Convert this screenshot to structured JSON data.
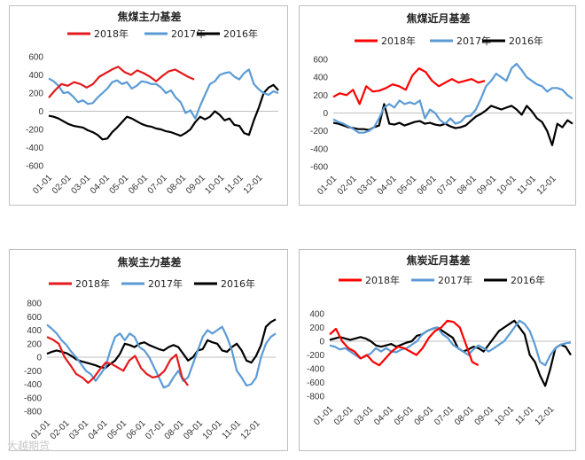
{
  "watermark": "大越期货",
  "chart_data": [
    {
      "type": "line",
      "title": "焦煤主力基差",
      "x_ticks": [
        "01-01",
        "02-01",
        "03-01",
        "04-01",
        "05-01",
        "06-01",
        "07-01",
        "08-01",
        "09-01",
        "10-01",
        "11-01",
        "12-01"
      ],
      "yticks": [
        600,
        400,
        200,
        0,
        -200,
        -400,
        -600
      ],
      "ylim": [
        -600,
        600
      ],
      "legend_position": "top",
      "grid": false,
      "series": [
        {
          "name": "2018年",
          "color": "#e31a1c",
          "x_end": 7.6,
          "values": [
            150,
            230,
            300,
            280,
            320,
            300,
            260,
            300,
            380,
            420,
            460,
            490,
            430,
            400,
            450,
            420,
            380,
            330,
            390,
            440,
            460,
            420,
            380,
            350
          ]
        },
        {
          "name": "2017年",
          "color": "#5b9bd5",
          "x_end": 12.0,
          "values": [
            360,
            330,
            280,
            200,
            210,
            160,
            100,
            120,
            80,
            90,
            150,
            200,
            250,
            320,
            340,
            300,
            320,
            250,
            280,
            330,
            320,
            300,
            300,
            260,
            200,
            230,
            150,
            100,
            -20,
            10,
            -80,
            60,
            180,
            300,
            330,
            400,
            420,
            430,
            380,
            350,
            420,
            460,
            300,
            240,
            200,
            180,
            220,
            200
          ]
        },
        {
          "name": "2016年",
          "color": "#000000",
          "x_end": 12.0,
          "values": [
            -50,
            -60,
            -80,
            -110,
            -140,
            -160,
            -170,
            -180,
            -210,
            -230,
            -260,
            -310,
            -300,
            -230,
            -180,
            -120,
            -60,
            -80,
            -110,
            -140,
            -160,
            -170,
            -190,
            -200,
            -220,
            -230,
            -250,
            -270,
            -240,
            -200,
            -120,
            -60,
            -90,
            -60,
            0,
            -40,
            -100,
            -80,
            -150,
            -160,
            -240,
            -260,
            -100,
            40,
            200,
            260,
            290,
            230
          ]
        }
      ]
    },
    {
      "type": "line",
      "title": "焦煤近月基差",
      "x_ticks": [
        "01-01",
        "02-01",
        "03-01",
        "04-01",
        "05-01",
        "06-01",
        "07-01",
        "08-01",
        "09-01",
        "10-01",
        "11-01",
        "12-01"
      ],
      "yticks": [
        600,
        400,
        200,
        0,
        -200,
        -400,
        -600
      ],
      "ylim": [
        -600,
        600
      ],
      "legend_position": "top",
      "grid": false,
      "series": [
        {
          "name": "2018年",
          "color": "#ff0000",
          "x_end": 7.6,
          "values": [
            180,
            220,
            200,
            260,
            100,
            300,
            240,
            250,
            280,
            320,
            300,
            260,
            420,
            500,
            460,
            360,
            300,
            340,
            380,
            340,
            360,
            380,
            340,
            360
          ]
        },
        {
          "name": "2017年",
          "color": "#5b9bd5",
          "x_end": 12.0,
          "values": [
            -70,
            -100,
            -120,
            -150,
            -180,
            -220,
            -220,
            -200,
            -160,
            -60,
            60,
            100,
            60,
            140,
            100,
            120,
            100,
            140,
            -60,
            40,
            0,
            -80,
            -120,
            -60,
            -120,
            -100,
            -40,
            -30,
            40,
            160,
            300,
            360,
            440,
            400,
            360,
            500,
            550,
            480,
            400,
            360,
            320,
            300,
            240,
            280,
            280,
            260,
            200,
            160
          ]
        },
        {
          "name": "2016年",
          "color": "#000000",
          "x_end": 12.0,
          "values": [
            -110,
            -120,
            -140,
            -160,
            -170,
            -180,
            -180,
            -190,
            -160,
            -140,
            100,
            -120,
            -130,
            -110,
            -140,
            -120,
            -100,
            -90,
            -120,
            -110,
            -130,
            -140,
            -120,
            -150,
            -170,
            -160,
            -140,
            -90,
            -40,
            -10,
            30,
            80,
            60,
            40,
            60,
            80,
            40,
            -20,
            80,
            20,
            -60,
            -100,
            -200,
            -360,
            -120,
            -160,
            -80,
            -120
          ]
        }
      ]
    },
    {
      "type": "line",
      "title": "焦炭主力基差",
      "x_ticks": [
        "01-01",
        "02-01",
        "03-01",
        "04-01",
        "05-01",
        "06-01",
        "07-01",
        "08-01",
        "09-01",
        "10-01",
        "11-01",
        "12-01"
      ],
      "yticks": [
        800,
        600,
        400,
        200,
        0,
        -200,
        -400,
        -600,
        -800
      ],
      "ylim": [
        -800,
        800
      ],
      "legend_position": "top",
      "grid": false,
      "series": [
        {
          "name": "2018年",
          "color": "#e31a1c",
          "x_end": 7.4,
          "values": [
            300,
            260,
            200,
            0,
            -120,
            -250,
            -300,
            -380,
            -300,
            -180,
            -80,
            -100,
            -150,
            -200,
            -50,
            20,
            -160,
            -250,
            -300,
            -280,
            -200,
            -40,
            40,
            -300,
            -420
          ]
        },
        {
          "name": "2017年",
          "color": "#5b9bd5",
          "x_end": 12.0,
          "values": [
            480,
            420,
            350,
            250,
            180,
            80,
            0,
            -100,
            -200,
            -250,
            -350,
            -250,
            -150,
            100,
            300,
            350,
            250,
            350,
            300,
            150,
            100,
            0,
            -150,
            -300,
            -450,
            -420,
            -300,
            -200,
            -350,
            -300,
            -100,
            100,
            300,
            400,
            350,
            400,
            450,
            300,
            100,
            -200,
            -300,
            -420,
            -400,
            -300,
            0,
            200,
            300,
            350
          ]
        },
        {
          "name": "2016年",
          "color": "#000000",
          "x_end": 12.0,
          "values": [
            50,
            80,
            100,
            80,
            60,
            20,
            -30,
            -60,
            -80,
            -100,
            -120,
            -150,
            -160,
            -100,
            -50,
            50,
            200,
            180,
            150,
            200,
            220,
            180,
            150,
            120,
            100,
            150,
            180,
            150,
            50,
            -50,
            0,
            100,
            120,
            250,
            220,
            200,
            100,
            80,
            150,
            200,
            100,
            -50,
            -80,
            20,
            180,
            450,
            520,
            560
          ]
        }
      ]
    },
    {
      "type": "line",
      "title": "焦炭近月基差",
      "x_ticks": [
        "01-01",
        "02-01",
        "03-01",
        "04-01",
        "05-01",
        "06-01",
        "07-01",
        "08-01",
        "09-01",
        "10-01",
        "11-01",
        "12-01"
      ],
      "yticks": [
        400,
        200,
        0,
        -200,
        -400,
        -600,
        -800
      ],
      "ylim": [
        -800,
        400
      ],
      "legend_position": "top",
      "grid": false,
      "series": [
        {
          "name": "2018年",
          "color": "#ff0000",
          "x_end": 7.4,
          "values": [
            100,
            180,
            0,
            -100,
            -150,
            -250,
            -200,
            -300,
            -350,
            -250,
            -150,
            -80,
            -100,
            -150,
            -200,
            -100,
            50,
            150,
            200,
            300,
            280,
            200,
            -50,
            -300,
            -350
          ]
        },
        {
          "name": "2017年",
          "color": "#5b9bd5",
          "x_end": 12.0,
          "values": [
            -60,
            -80,
            -120,
            -100,
            -150,
            -200,
            -250,
            -220,
            -180,
            -100,
            -150,
            -100,
            -150,
            -160,
            -120,
            -100,
            -50,
            0,
            100,
            150,
            180,
            200,
            100,
            50,
            -50,
            -100,
            -150,
            -200,
            -120,
            -60,
            -100,
            -150,
            -100,
            -50,
            0,
            100,
            200,
            300,
            250,
            150,
            -50,
            -300,
            -350,
            -200,
            -100,
            -50,
            -30,
            -20
          ]
        },
        {
          "name": "2016年",
          "color": "#000000",
          "x_end": 12.0,
          "values": [
            20,
            40,
            60,
            40,
            20,
            40,
            60,
            40,
            0,
            -60,
            -80,
            -60,
            -40,
            -80,
            -50,
            -20,
            0,
            80,
            100,
            150,
            180,
            200,
            150,
            100,
            50,
            -100,
            -150,
            -120,
            -80,
            -100,
            -150,
            -50,
            50,
            150,
            200,
            250,
            300,
            200,
            100,
            -200,
            -300,
            -500,
            -650,
            -400,
            -100,
            -50,
            -80,
            -200
          ]
        }
      ]
    }
  ]
}
